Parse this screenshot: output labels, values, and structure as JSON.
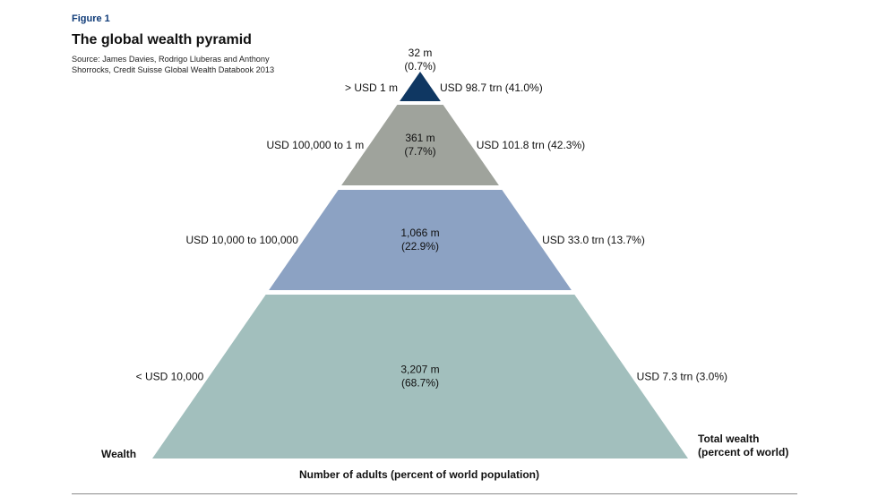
{
  "figure": {
    "label": "Figure 1",
    "title": "The global wealth pyramid",
    "source": "Source: James Davies, Rodrigo Lluberas and Anthony Shorrocks, Credit Suisse Global Wealth Databook 2013"
  },
  "chart_data": {
    "type": "pyramid",
    "title": "The global wealth pyramid",
    "left_axis_label": "Wealth",
    "right_axis_label": "Total wealth (percent of world)",
    "xlabel": "Number of adults (percent of world population)",
    "tiers": [
      {
        "wealth_range": "> USD 1 m",
        "adults": "32 m",
        "adults_pct": "(0.7%)",
        "adults_millions": 32,
        "adults_share_percent": 0.7,
        "total_wealth": "USD 98.7 trn (41.0%)",
        "total_wealth_trn": 98.7,
        "total_wealth_share_percent": 41.0,
        "color": "#0f3762"
      },
      {
        "wealth_range": "USD 100,000 to 1 m",
        "adults": "361 m",
        "adults_pct": "(7.7%)",
        "adults_millions": 361,
        "adults_share_percent": 7.7,
        "total_wealth": "USD 101.8 trn (42.3%)",
        "total_wealth_trn": 101.8,
        "total_wealth_share_percent": 42.3,
        "color": "#9fa39c"
      },
      {
        "wealth_range": "USD 10,000 to 100,000",
        "adults": "1,066 m",
        "adults_pct": "(22.9%)",
        "adults_millions": 1066,
        "adults_share_percent": 22.9,
        "total_wealth": "USD 33.0 trn (13.7%)",
        "total_wealth_trn": 33.0,
        "total_wealth_share_percent": 13.7,
        "color": "#8ca2c3"
      },
      {
        "wealth_range": "< USD 10,000",
        "adults": "3,207 m",
        "adults_pct": "(68.7%)",
        "adults_millions": 3207,
        "adults_share_percent": 68.7,
        "total_wealth": "USD 7.3 trn (3.0%)",
        "total_wealth_trn": 7.3,
        "total_wealth_share_percent": 3.0,
        "color": "#a2bfbd"
      }
    ]
  }
}
